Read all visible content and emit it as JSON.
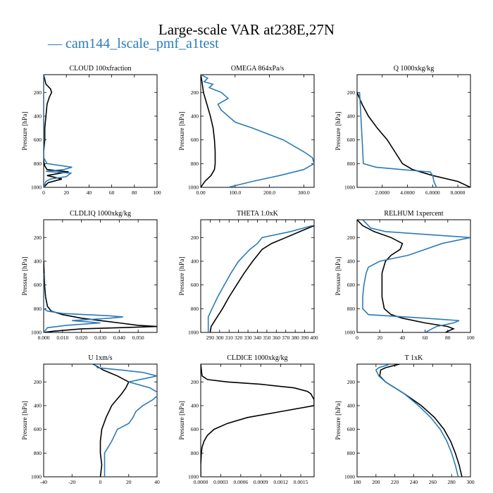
{
  "title": "Large-scale VAR at238E,27N",
  "legend": {
    "label": "— cam144_lscale_pmf_a1test",
    "color": "#2b7bb9"
  },
  "colors": {
    "case": "#2b7bb9",
    "reference": "#000000"
  },
  "chart_data": [
    {
      "type": "line",
      "title": "CLOUD  100xfraction",
      "ylabel": "Pressure [hPa]",
      "xlim": [
        0,
        100
      ],
      "ylim": [
        1000,
        50
      ],
      "xticks": [
        "0",
        "20",
        "40",
        "60",
        "80",
        "100"
      ],
      "yticks": [
        "200",
        "400",
        "600",
        "800",
        "1000"
      ],
      "series": [
        {
          "pressure": [
            50,
            130,
            170,
            200,
            240,
            300,
            400,
            500,
            600,
            700,
            780,
            820,
            850,
            870,
            880,
            900,
            930,
            960,
            1000
          ],
          "values": [
            0,
            2,
            6,
            7,
            5,
            3,
            2,
            1,
            1,
            0,
            0,
            1,
            3,
            22,
            15,
            3,
            16,
            4,
            0
          ]
        },
        {
          "color": "case",
          "pressure": [
            50,
            200,
            400,
            600,
            750,
            800,
            830,
            850,
            865,
            880,
            910,
            930,
            950,
            1000
          ],
          "values": [
            0,
            0,
            0,
            0,
            0,
            3,
            25,
            18,
            2,
            24,
            20,
            6,
            2,
            0
          ]
        }
      ]
    },
    {
      "type": "line",
      "title": "OMEGA  864xPa/s",
      "ylabel": "Pressure [hPa]",
      "xlim": [
        0,
        330
      ],
      "ylim": [
        1000,
        50
      ],
      "xticks": [
        "0.00",
        "100.0",
        "200.0",
        "300.0"
      ],
      "xtickvals": [
        0,
        100,
        200,
        300
      ],
      "yticks": [
        "200",
        "400",
        "600",
        "800",
        "1000"
      ],
      "series": [
        {
          "pressure": [
            50,
            100,
            200,
            300,
            400,
            500,
            600,
            700,
            800,
            850,
            900,
            950,
            1000
          ],
          "values": [
            0,
            3,
            8,
            18,
            28,
            36,
            40,
            42,
            42,
            40,
            30,
            12,
            0
          ]
        },
        {
          "color": "case",
          "pressure": [
            50,
            80,
            110,
            130,
            160,
            200,
            250,
            300,
            350,
            400,
            450,
            500,
            600,
            700,
            750,
            800,
            850,
            900,
            950,
            1000
          ],
          "values": [
            0,
            20,
            10,
            35,
            25,
            60,
            80,
            50,
            60,
            80,
            100,
            150,
            240,
            300,
            325,
            330,
            300,
            230,
            150,
            80
          ]
        }
      ]
    },
    {
      "type": "line",
      "title": "Q  1000xkg/kg",
      "ylabel": "Pressure [hPa]",
      "xlim": [
        0,
        9
      ],
      "ylim": [
        1000,
        50
      ],
      "xticks": [
        "2.0000",
        "4.0000",
        "6.0000",
        "8.0000"
      ],
      "xtickvals": [
        2,
        4,
        6,
        8
      ],
      "yticks": [
        "200",
        "400",
        "600",
        "800",
        "1000"
      ],
      "series": [
        {
          "pressure": [
            200,
            300,
            400,
            500,
            600,
            700,
            800,
            850,
            900,
            950,
            1000
          ],
          "values": [
            0,
            0.4,
            0.9,
            1.6,
            2.4,
            3.0,
            3.6,
            4.4,
            6.0,
            8.0,
            9.0
          ]
        },
        {
          "color": "case",
          "pressure": [
            200,
            400,
            600,
            800,
            830,
            850,
            870,
            900,
            950,
            1000
          ],
          "values": [
            0.2,
            0.3,
            0.4,
            0.5,
            1.5,
            3.5,
            5.8,
            6.0,
            6.1,
            6.3
          ]
        }
      ]
    },
    {
      "type": "line",
      "title": "CLDLIQ  1000xkg/kg",
      "ylabel": "Pressure [hPa]",
      "xlim": [
        0,
        0.06
      ],
      "ylim": [
        1000,
        50
      ],
      "xticks": [
        "0.000",
        "0.010",
        "0.020",
        "0.030",
        "0.040",
        "0.050"
      ],
      "xtickvals": [
        0,
        0.01,
        0.02,
        0.03,
        0.04,
        0.05
      ],
      "yticks": [
        "200",
        "400",
        "600",
        "800",
        "1000"
      ],
      "series": [
        {
          "pressure": [
            400,
            600,
            700,
            780,
            820,
            850,
            880,
            900,
            920,
            940,
            950,
            960,
            970,
            990,
            1000
          ],
          "values": [
            0,
            0.0005,
            0.001,
            0.002,
            0.004,
            0.01,
            0.02,
            0.03,
            0.04,
            0.05,
            0.06,
            0.04,
            0.02,
            0.005,
            0
          ]
        },
        {
          "color": "case",
          "pressure": [
            500,
            700,
            800,
            820,
            840,
            860,
            870,
            880,
            900,
            920,
            940,
            960,
            1000
          ],
          "values": [
            0,
            0,
            0,
            0.002,
            0.01,
            0.035,
            0.042,
            0.035,
            0.015,
            0.03,
            0.012,
            0.002,
            0
          ]
        }
      ]
    },
    {
      "type": "line",
      "title": "THETA  1.0xK",
      "ylabel": "Pressure [hPa]",
      "xlim": [
        280,
        400
      ],
      "ylim": [
        1000,
        50
      ],
      "xticks": [
        "290",
        "300",
        "310",
        "320",
        "330",
        "340",
        "350",
        "360",
        "370",
        "380",
        "390",
        "400"
      ],
      "xtickvals": [
        290,
        300,
        310,
        320,
        330,
        340,
        350,
        360,
        370,
        380,
        390,
        400
      ],
      "yticks": [
        "200",
        "400",
        "600",
        "800",
        "1000"
      ],
      "series": [
        {
          "pressure": [
            100,
            150,
            200,
            250,
            300,
            400,
            500,
            600,
            700,
            800,
            850,
            900,
            950,
            1000
          ],
          "values": [
            400,
            385,
            370,
            355,
            345,
            335,
            326,
            318,
            310,
            303,
            299,
            295,
            291,
            290
          ]
        },
        {
          "color": "case",
          "pressure": [
            100,
            150,
            200,
            250,
            300,
            400,
            500,
            600,
            700,
            800,
            870,
            900,
            950,
            1000
          ],
          "values": [
            398,
            375,
            345,
            340,
            332,
            320,
            312,
            305,
            298,
            292,
            288,
            288,
            288,
            288
          ]
        }
      ]
    },
    {
      "type": "line",
      "title": "RELHUM  1xpercent",
      "ylabel": "Pressure [hPa]",
      "xlim": [
        0,
        100
      ],
      "ylim": [
        1000,
        50
      ],
      "xticks": [
        "0",
        "20",
        "40",
        "60",
        "80",
        "100"
      ],
      "yticks": [
        "200",
        "400",
        "600",
        "800",
        "1000"
      ],
      "series": [
        {
          "pressure": [
            50,
            100,
            150,
            200,
            250,
            300,
            350,
            400,
            500,
            600,
            700,
            800,
            850,
            880,
            920,
            950,
            970,
            990,
            1000
          ],
          "values": [
            0,
            5,
            15,
            30,
            40,
            38,
            30,
            25,
            22,
            22,
            22,
            24,
            30,
            40,
            60,
            80,
            85,
            80,
            78
          ]
        },
        {
          "color": "case",
          "pressure": [
            50,
            100,
            120,
            150,
            200,
            230,
            250,
            300,
            350,
            400,
            450,
            500,
            600,
            700,
            800,
            850,
            880,
            900,
            920,
            950,
            1000
          ],
          "values": [
            5,
            10,
            12,
            25,
            100,
            85,
            75,
            60,
            45,
            20,
            10,
            8,
            6,
            5,
            5,
            10,
            60,
            90,
            85,
            70,
            60
          ]
        }
      ]
    },
    {
      "type": "line",
      "title": "U  1xm/s",
      "ylabel": "Pressure [hPa]",
      "xlim": [
        -40,
        40
      ],
      "ylim": [
        1000,
        50
      ],
      "xticks": [
        "-40",
        "-20",
        "0",
        "20",
        "40"
      ],
      "xtickvals": [
        -40,
        -20,
        0,
        20,
        40
      ],
      "yticks": [
        "200",
        "400",
        "600",
        "800",
        "1000"
      ],
      "series": [
        {
          "pressure": [
            50,
            100,
            150,
            200,
            250,
            300,
            400,
            500,
            600,
            700,
            800,
            900,
            1000
          ],
          "values": [
            -5,
            2,
            12,
            20,
            18,
            15,
            8,
            4,
            1,
            0,
            0,
            1,
            0
          ]
        },
        {
          "color": "case",
          "pressure": [
            50,
            80,
            100,
            120,
            150,
            200,
            250,
            300,
            350,
            400,
            450,
            500,
            550,
            600,
            700,
            800,
            900,
            1000
          ],
          "values": [
            -4,
            -2,
            15,
            30,
            40,
            20,
            35,
            42,
            37,
            30,
            25,
            23,
            20,
            12,
            8,
            3,
            3,
            3
          ]
        }
      ]
    },
    {
      "type": "line",
      "title": "CLDICE  1000xkg/kg",
      "ylabel": "Pressure [hPa]",
      "xlim": [
        0,
        0.0017
      ],
      "ylim": [
        1000,
        50
      ],
      "xticks": [
        "0.0000",
        "0.0003",
        "0.0006",
        "0.0009",
        "0.0012",
        "0.0015"
      ],
      "xtickvals": [
        0,
        0.0003,
        0.0006,
        0.0009,
        0.0012,
        0.0015
      ],
      "yticks": [
        "200",
        "400",
        "600",
        "800",
        "1000"
      ],
      "series": [
        {
          "pressure": [
            50,
            150,
            180,
            200,
            220,
            250,
            280,
            300,
            350,
            400,
            450,
            500,
            550,
            600,
            650,
            700,
            750,
            800,
            900,
            1000
          ],
          "values": [
            0,
            2e-05,
            0.0001,
            0.0004,
            0.0009,
            0.0014,
            0.0016,
            0.00165,
            0.0017,
            0.0017,
            0.0012,
            0.0007,
            0.0004,
            0.0002,
            0.0001,
            5e-05,
            2e-05,
            1e-05,
            0,
            0
          ]
        }
      ]
    },
    {
      "type": "line",
      "title": "T  1xK",
      "ylabel": "Pressure [hPa]",
      "xlim": [
        180,
        300
      ],
      "ylim": [
        1000,
        50
      ],
      "xticks": [
        "180",
        "200",
        "220",
        "240",
        "260",
        "280",
        "300"
      ],
      "xtickvals": [
        180,
        200,
        220,
        240,
        260,
        280,
        300
      ],
      "yticks": [
        "200",
        "400",
        "600",
        "800",
        "1000"
      ],
      "series": [
        {
          "pressure": [
            50,
            80,
            100,
            150,
            200,
            300,
            400,
            500,
            600,
            700,
            800,
            900,
            1000
          ],
          "values": [
            225,
            210,
            205,
            204,
            210,
            230,
            248,
            262,
            272,
            279,
            284,
            288,
            291
          ]
        },
        {
          "color": "case",
          "pressure": [
            50,
            80,
            100,
            150,
            200,
            300,
            400,
            500,
            600,
            700,
            800,
            900,
            1000
          ],
          "values": [
            215,
            203,
            200,
            203,
            210,
            230,
            245,
            258,
            268,
            275,
            280,
            284,
            287
          ]
        }
      ]
    }
  ]
}
